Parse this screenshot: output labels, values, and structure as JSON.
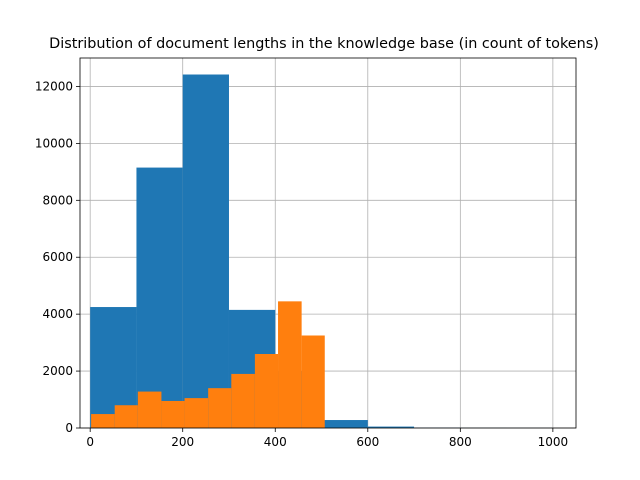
{
  "chart_data": {
    "type": "bar",
    "title": "Distribution of document lengths in the knowledge base (in count of tokens)",
    "xlabel": "",
    "ylabel": "",
    "xlim": [
      -22,
      1050
    ],
    "ylim": [
      0,
      13000
    ],
    "grid": true,
    "x_ticks": [
      0,
      200,
      400,
      600,
      800,
      1000
    ],
    "y_ticks": [
      0,
      2000,
      4000,
      6000,
      8000,
      10000,
      12000
    ],
    "series": [
      {
        "color": "#1f77b4",
        "bins": [
          {
            "x0": 0,
            "x1": 100,
            "value": 4250
          },
          {
            "x0": 100,
            "x1": 200,
            "value": 9150
          },
          {
            "x0": 200,
            "x1": 300,
            "value": 12420
          },
          {
            "x0": 300,
            "x1": 400,
            "value": 4150
          },
          {
            "x0": 400,
            "x1": 500,
            "value": 2000
          },
          {
            "x0": 500,
            "x1": 600,
            "value": 280
          },
          {
            "x0": 600,
            "x1": 700,
            "value": 50
          },
          {
            "x0": 700,
            "x1": 800,
            "value": 10
          },
          {
            "x0": 800,
            "x1": 900,
            "value": 5
          },
          {
            "x0": 900,
            "x1": 1000,
            "value": 3
          }
        ]
      },
      {
        "color": "#ff7f0e",
        "bins": [
          {
            "x0": 2,
            "x1": 53,
            "value": 490
          },
          {
            "x0": 53,
            "x1": 103,
            "value": 800
          },
          {
            "x0": 103,
            "x1": 154,
            "value": 1280
          },
          {
            "x0": 154,
            "x1": 204,
            "value": 950
          },
          {
            "x0": 204,
            "x1": 255,
            "value": 1050
          },
          {
            "x0": 255,
            "x1": 305,
            "value": 1400
          },
          {
            "x0": 305,
            "x1": 356,
            "value": 1900
          },
          {
            "x0": 356,
            "x1": 406,
            "value": 2600
          },
          {
            "x0": 406,
            "x1": 457,
            "value": 4450
          },
          {
            "x0": 457,
            "x1": 507,
            "value": 3250
          }
        ]
      }
    ]
  }
}
